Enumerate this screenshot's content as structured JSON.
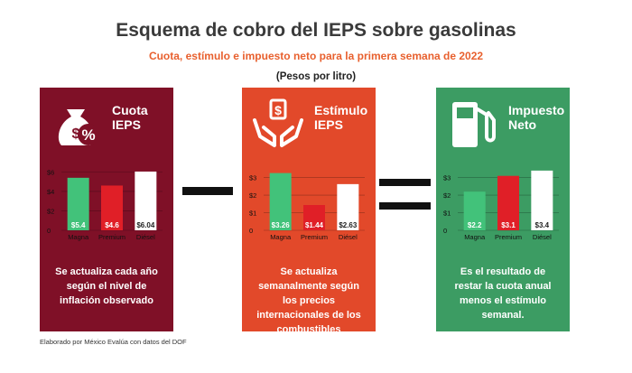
{
  "header": {
    "title": "Esquema de cobro del IEPS sobre gasolinas",
    "subtitle": "Cuota, estímulo e impuesto neto para la primera semana de 2022",
    "units": "(Pesos por litro)"
  },
  "source": "Elaborado por México Evalúa con datos del DOF",
  "colors": {
    "cuota_bg": "#7f1027",
    "estimulo_bg": "#e2492a",
    "impuesto_bg": "#3c9c63",
    "magna": "#42c27a",
    "premium": "#e01f27",
    "diesel": "#ffffff",
    "operator": "#111111"
  },
  "panels": [
    {
      "title_line1": "Cuota",
      "title_line2": "IEPS",
      "icon": "money-bag-icon",
      "description": "Se actualiza cada año según el nivel de inflación observado"
    },
    {
      "title_line1": "Estímulo",
      "title_line2": "IEPS",
      "icon": "hands-money-icon",
      "description": "Se actualiza semanalmente según los precios internacionales de los combustibles"
    },
    {
      "title_line1": "Impuesto",
      "title_line2": "Neto",
      "icon": "fuel-pump-icon",
      "description": "Es el resultado de restar la cuota anual menos el estímulo semanal."
    }
  ],
  "chart_data": [
    {
      "type": "bar",
      "title": "Cuota IEPS",
      "categories": [
        "Magna",
        "Premium",
        "Diésel"
      ],
      "values": [
        5.4,
        4.6,
        6.04
      ],
      "value_labels": [
        "$5.4",
        "$4.6",
        "$6.04"
      ],
      "yticks": [
        "$6",
        "$4",
        "$2",
        "0"
      ],
      "ytick_values": [
        6,
        4,
        2,
        0
      ],
      "ylim": [
        0,
        6.5
      ]
    },
    {
      "type": "bar",
      "title": "Estímulo IEPS",
      "categories": [
        "Magna",
        "Premium",
        "Diésel"
      ],
      "values": [
        3.26,
        1.44,
        2.63
      ],
      "value_labels": [
        "$3.26",
        "$1.44",
        "$2.63"
      ],
      "yticks": [
        "$3",
        "$2",
        "$1",
        "0"
      ],
      "ytick_values": [
        3,
        2,
        1,
        0
      ],
      "ylim": [
        0,
        3.6
      ]
    },
    {
      "type": "bar",
      "title": "Impuesto Neto",
      "categories": [
        "Magna",
        "Premium",
        "Diésel"
      ],
      "values": [
        2.2,
        3.1,
        3.4
      ],
      "value_labels": [
        "$2.2",
        "$3.1",
        "$3.4"
      ],
      "yticks": [
        "$3",
        "$2",
        "$1",
        "0"
      ],
      "ytick_values": [
        3,
        2,
        1,
        0
      ],
      "ylim": [
        0,
        3.6
      ]
    }
  ]
}
